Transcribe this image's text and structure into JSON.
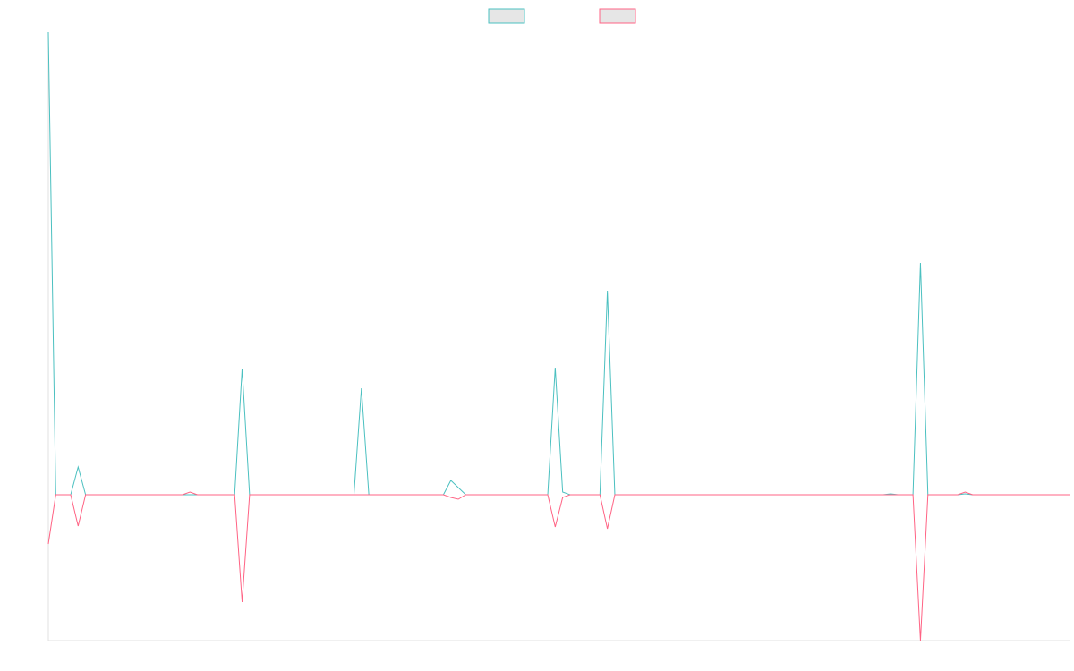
{
  "chart_data": {
    "type": "line",
    "ylim": [
      -163,
      517
    ],
    "legend": "top",
    "series": [
      {
        "color": "#4bc0c0",
        "values": [
          517,
          0,
          0,
          0,
          31,
          0,
          0,
          0,
          0,
          0,
          0,
          0,
          0,
          0,
          0,
          0,
          0,
          0,
          0,
          0,
          0,
          0,
          0,
          0,
          0,
          0,
          141,
          0,
          0,
          0,
          0,
          0,
          0,
          0,
          0,
          0,
          0,
          0,
          0,
          0,
          0,
          0,
          119,
          0,
          0,
          0,
          0,
          0,
          0,
          0,
          0,
          0,
          0,
          0,
          16,
          8,
          0,
          0,
          0,
          0,
          0,
          0,
          0,
          0,
          0,
          0,
          0,
          0,
          142,
          3,
          0,
          0,
          0,
          0,
          0,
          228,
          0,
          0,
          0,
          0,
          0,
          0,
          0,
          0,
          0,
          0,
          0,
          0,
          0,
          0,
          0,
          0,
          0,
          0,
          0,
          0,
          0,
          0,
          0,
          0,
          0,
          0,
          0,
          0,
          0,
          0,
          0,
          0,
          0,
          0,
          0,
          0,
          0,
          1,
          0,
          0,
          0,
          259,
          0,
          0,
          0,
          0,
          0,
          1,
          0,
          0,
          0,
          0,
          0,
          0,
          0,
          0,
          0,
          0,
          0,
          0,
          0,
          0
        ]
      },
      {
        "color": "#ff6384",
        "values": [
          -55,
          0,
          0,
          0,
          -35,
          0,
          0,
          0,
          0,
          0,
          0,
          0,
          0,
          0,
          0,
          0,
          0,
          0,
          0,
          3,
          0,
          0,
          0,
          0,
          0,
          0,
          -120,
          0,
          0,
          0,
          0,
          0,
          0,
          0,
          0,
          0,
          0,
          0,
          0,
          0,
          0,
          0,
          0,
          0,
          0,
          0,
          0,
          0,
          0,
          0,
          0,
          0,
          0,
          0,
          -3,
          -5,
          0,
          0,
          0,
          0,
          0,
          0,
          0,
          0,
          0,
          0,
          0,
          0,
          -36,
          -3,
          0,
          0,
          0,
          0,
          0,
          -38,
          0,
          0,
          0,
          0,
          0,
          0,
          0,
          0,
          0,
          0,
          0,
          0,
          0,
          0,
          0,
          0,
          0,
          0,
          0,
          0,
          0,
          0,
          0,
          0,
          0,
          0,
          0,
          0,
          0,
          0,
          0,
          0,
          0,
          0,
          0,
          0,
          0,
          0,
          0,
          0,
          0,
          -163,
          0,
          0,
          0,
          0,
          0,
          3,
          0,
          0,
          0,
          0,
          0,
          0,
          0,
          0,
          0,
          0,
          0,
          0,
          0,
          0
        ]
      }
    ]
  }
}
